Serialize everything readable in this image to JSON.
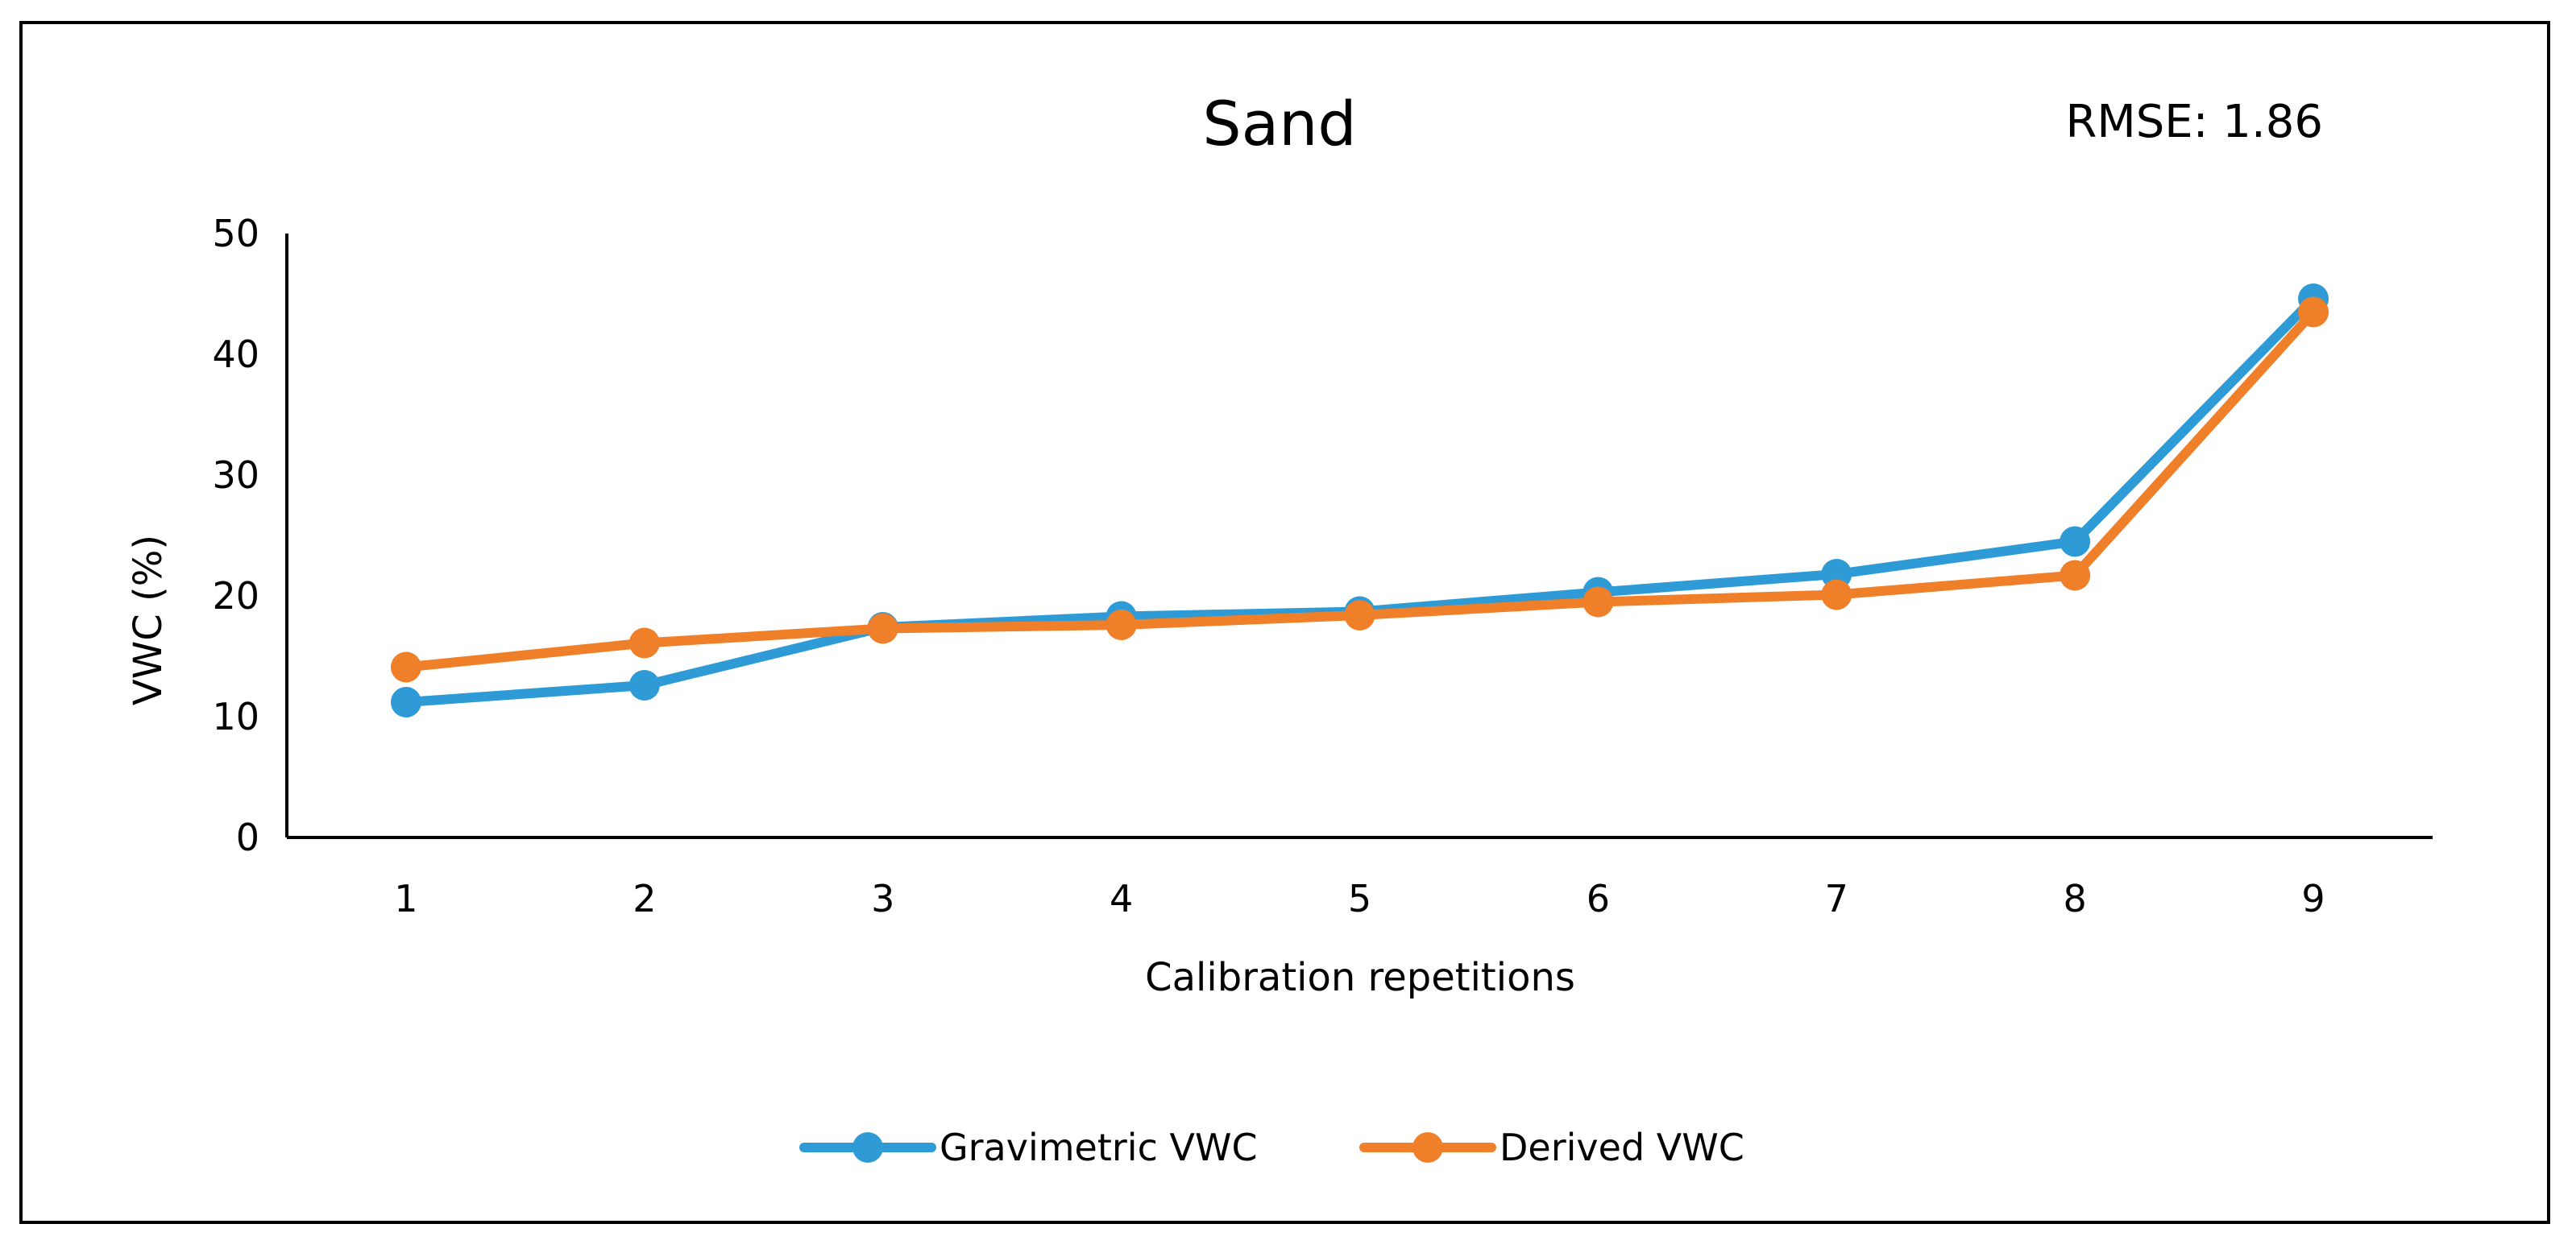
{
  "chart_data": {
    "type": "line",
    "title": "Sand",
    "annotation": "RMSE: 1.86",
    "xlabel": "Calibration repetitions",
    "ylabel": "VWC (%)",
    "categories": [
      "1",
      "2",
      "3",
      "4",
      "5",
      "6",
      "7",
      "8",
      "9"
    ],
    "ylim": [
      0,
      50
    ],
    "yticks": [
      0,
      10,
      20,
      30,
      40,
      50
    ],
    "grid": false,
    "legend_position": "bottom",
    "series": [
      {
        "name": "Gravimetric VWC",
        "color": "#2E9AD6",
        "values": [
          11.2,
          12.6,
          17.4,
          18.3,
          18.7,
          20.3,
          21.8,
          24.5,
          44.6
        ]
      },
      {
        "name": "Derived VWC",
        "color": "#F07F2A",
        "values": [
          14.1,
          16.1,
          17.3,
          17.6,
          18.4,
          19.5,
          20.1,
          21.7,
          43.5
        ]
      }
    ]
  }
}
